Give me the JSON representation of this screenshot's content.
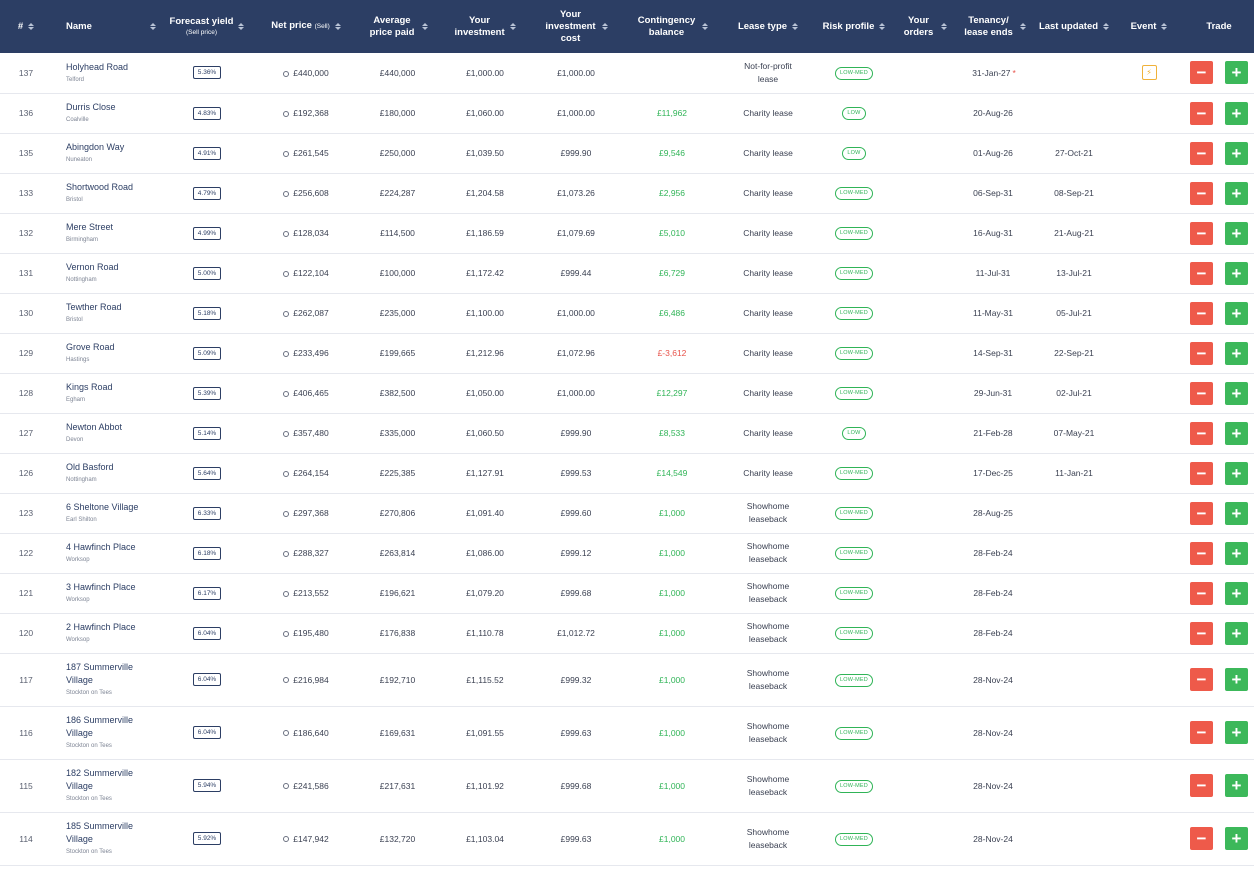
{
  "colors": {
    "header_bg": "#2c3e64",
    "positive": "#30b457",
    "negative": "#e8524a",
    "sell_button": "#ee5a4a",
    "buy_button": "#3cb85a",
    "event": "#f0b23a"
  },
  "icons": {
    "sort": "sort-icon",
    "event": "event-icon",
    "sell": "minus-icon",
    "buy": "plus-icon"
  },
  "header": {
    "num": "#",
    "name": "Name",
    "yield": "Forecast yield",
    "yield_sub": "(Sell price)",
    "net_price": "Net price",
    "net_price_sub": "(Sell)",
    "avg_price": "Average price paid",
    "your_investment": "Your investment",
    "investment_cost": "Your investment cost",
    "contingency": "Contingency balance",
    "lease_type": "Lease type",
    "risk": "Risk profile",
    "orders": "Your orders",
    "tenancy": "Tenancy/ lease ends",
    "updated": "Last updated",
    "event": "Event",
    "trade": "Trade",
    "sell_symbol": "−",
    "buy_symbol": "+"
  },
  "rows": [
    {
      "num": "137",
      "name": "Holyhead Road",
      "location": "Telford",
      "yield": "5.36%",
      "net_price": "£440,000",
      "avg_price": "£440,000",
      "investment": "£1,000.00",
      "cost": "£1,000.00",
      "contingency": "",
      "contingency_status": "none",
      "lease": "Not-for-profit lease",
      "risk": "LOW-MED",
      "tenancy": "31-Jan-27",
      "tenancy_flag": "*",
      "updated": "",
      "event": "⚡"
    },
    {
      "num": "136",
      "name": "Durris Close",
      "location": "Coalville",
      "yield": "4.83%",
      "net_price": "£192,368",
      "avg_price": "£180,000",
      "investment": "£1,060.00",
      "cost": "£1,000.00",
      "contingency": "£11,962",
      "contingency_status": "positive",
      "lease": "Charity lease",
      "risk": "LOW",
      "tenancy": "20-Aug-26",
      "tenancy_flag": "",
      "updated": "",
      "event": ""
    },
    {
      "num": "135",
      "name": "Abingdon Way",
      "location": "Nuneaton",
      "yield": "4.91%",
      "net_price": "£261,545",
      "avg_price": "£250,000",
      "investment": "£1,039.50",
      "cost": "£999.90",
      "contingency": "£9,546",
      "contingency_status": "positive",
      "lease": "Charity lease",
      "risk": "LOW",
      "tenancy": "01-Aug-26",
      "tenancy_flag": "",
      "updated": "27-Oct-21",
      "event": ""
    },
    {
      "num": "133",
      "name": "Shortwood Road",
      "location": "Bristol",
      "yield": "4.79%",
      "net_price": "£256,608",
      "avg_price": "£224,287",
      "investment": "£1,204.58",
      "cost": "£1,073.26",
      "contingency": "£2,956",
      "contingency_status": "positive",
      "lease": "Charity lease",
      "risk": "LOW-MED",
      "tenancy": "06-Sep-31",
      "tenancy_flag": "",
      "updated": "08-Sep-21",
      "event": ""
    },
    {
      "num": "132",
      "name": "Mere Street",
      "location": "Birmingham",
      "yield": "4.99%",
      "net_price": "£128,034",
      "avg_price": "£114,500",
      "investment": "£1,186.59",
      "cost": "£1,079.69",
      "contingency": "£5,010",
      "contingency_status": "positive",
      "lease": "Charity lease",
      "risk": "LOW-MED",
      "tenancy": "16-Aug-31",
      "tenancy_flag": "",
      "updated": "21-Aug-21",
      "event": ""
    },
    {
      "num": "131",
      "name": "Vernon Road",
      "location": "Nottingham",
      "yield": "5.00%",
      "net_price": "£122,104",
      "avg_price": "£100,000",
      "investment": "£1,172.42",
      "cost": "£999.44",
      "contingency": "£6,729",
      "contingency_status": "positive",
      "lease": "Charity lease",
      "risk": "LOW-MED",
      "tenancy": "11-Jul-31",
      "tenancy_flag": "",
      "updated": "13-Jul-21",
      "event": ""
    },
    {
      "num": "130",
      "name": "Tewther Road",
      "location": "Bristol",
      "yield": "5.18%",
      "net_price": "£262,087",
      "avg_price": "£235,000",
      "investment": "£1,100.00",
      "cost": "£1,000.00",
      "contingency": "£6,486",
      "contingency_status": "positive",
      "lease": "Charity lease",
      "risk": "LOW-MED",
      "tenancy": "11-May-31",
      "tenancy_flag": "",
      "updated": "05-Jul-21",
      "event": ""
    },
    {
      "num": "129",
      "name": "Grove Road",
      "location": "Hastings",
      "yield": "5.09%",
      "net_price": "£233,496",
      "avg_price": "£199,665",
      "investment": "£1,212.96",
      "cost": "£1,072.96",
      "contingency": "£-3,612",
      "contingency_status": "negative",
      "lease": "Charity lease",
      "risk": "LOW-MED",
      "tenancy": "14-Sep-31",
      "tenancy_flag": "",
      "updated": "22-Sep-21",
      "event": ""
    },
    {
      "num": "128",
      "name": "Kings Road",
      "location": "Egham",
      "yield": "5.39%",
      "net_price": "£406,465",
      "avg_price": "£382,500",
      "investment": "£1,050.00",
      "cost": "£1,000.00",
      "contingency": "£12,297",
      "contingency_status": "positive",
      "lease": "Charity lease",
      "risk": "LOW-MED",
      "tenancy": "29-Jun-31",
      "tenancy_flag": "",
      "updated": "02-Jul-21",
      "event": ""
    },
    {
      "num": "127",
      "name": "Newton Abbot",
      "location": "Devon",
      "yield": "5.14%",
      "net_price": "£357,480",
      "avg_price": "£335,000",
      "investment": "£1,060.50",
      "cost": "£999.90",
      "contingency": "£8,533",
      "contingency_status": "positive",
      "lease": "Charity lease",
      "risk": "LOW",
      "tenancy": "21-Feb-28",
      "tenancy_flag": "",
      "updated": "07-May-21",
      "event": ""
    },
    {
      "num": "126",
      "name": "Old Basford",
      "location": "Nottingham",
      "yield": "5.64%",
      "net_price": "£264,154",
      "avg_price": "£225,385",
      "investment": "£1,127.91",
      "cost": "£999.53",
      "contingency": "£14,549",
      "contingency_status": "positive",
      "lease": "Charity lease",
      "risk": "LOW-MED",
      "tenancy": "17-Dec-25",
      "tenancy_flag": "",
      "updated": "11-Jan-21",
      "event": ""
    },
    {
      "num": "123",
      "name": "6 Sheltone Village",
      "location": "Earl Shilton",
      "yield": "6.33%",
      "net_price": "£297,368",
      "avg_price": "£270,806",
      "investment": "£1,091.40",
      "cost": "£999.60",
      "contingency": "£1,000",
      "contingency_status": "positive",
      "lease": "Showhome leaseback",
      "risk": "LOW-MED",
      "tenancy": "28-Aug-25",
      "tenancy_flag": "",
      "updated": "",
      "event": ""
    },
    {
      "num": "122",
      "name": "4 Hawfinch Place",
      "location": "Worksop",
      "yield": "6.18%",
      "net_price": "£288,327",
      "avg_price": "£263,814",
      "investment": "£1,086.00",
      "cost": "£999.12",
      "contingency": "£1,000",
      "contingency_status": "positive",
      "lease": "Showhome leaseback",
      "risk": "LOW-MED",
      "tenancy": "28-Feb-24",
      "tenancy_flag": "",
      "updated": "",
      "event": ""
    },
    {
      "num": "121",
      "name": "3 Hawfinch Place",
      "location": "Worksop",
      "yield": "6.17%",
      "net_price": "£213,552",
      "avg_price": "£196,621",
      "investment": "£1,079.20",
      "cost": "£999.68",
      "contingency": "£1,000",
      "contingency_status": "positive",
      "lease": "Showhome leaseback",
      "risk": "LOW-MED",
      "tenancy": "28-Feb-24",
      "tenancy_flag": "",
      "updated": "",
      "event": ""
    },
    {
      "num": "120",
      "name": "2 Hawfinch Place",
      "location": "Worksop",
      "yield": "6.04%",
      "net_price": "£195,480",
      "avg_price": "£176,838",
      "investment": "£1,110.78",
      "cost": "£1,012.72",
      "contingency": "£1,000",
      "contingency_status": "positive",
      "lease": "Showhome leaseback",
      "risk": "LOW-MED",
      "tenancy": "28-Feb-24",
      "tenancy_flag": "",
      "updated": "",
      "event": ""
    },
    {
      "num": "117",
      "name": "187 Summerville Village",
      "location": "Stockton on Tees",
      "yield": "6.04%",
      "net_price": "£216,984",
      "avg_price": "£192,710",
      "investment": "£1,115.52",
      "cost": "£999.32",
      "contingency": "£1,000",
      "contingency_status": "positive",
      "lease": "Showhome leaseback",
      "risk": "LOW-MED",
      "tenancy": "28-Nov-24",
      "tenancy_flag": "",
      "updated": "",
      "event": ""
    },
    {
      "num": "116",
      "name": "186 Summerville Village",
      "location": "Stockton on Tees",
      "yield": "6.04%",
      "net_price": "£186,640",
      "avg_price": "£169,631",
      "investment": "£1,091.55",
      "cost": "£999.63",
      "contingency": "£1,000",
      "contingency_status": "positive",
      "lease": "Showhome leaseback",
      "risk": "LOW-MED",
      "tenancy": "28-Nov-24",
      "tenancy_flag": "",
      "updated": "",
      "event": ""
    },
    {
      "num": "115",
      "name": "182 Summerville Village",
      "location": "Stockton on Tees",
      "yield": "5.94%",
      "net_price": "£241,586",
      "avg_price": "£217,631",
      "investment": "£1,101.92",
      "cost": "£999.68",
      "contingency": "£1,000",
      "contingency_status": "positive",
      "lease": "Showhome leaseback",
      "risk": "LOW-MED",
      "tenancy": "28-Nov-24",
      "tenancy_flag": "",
      "updated": "",
      "event": ""
    },
    {
      "num": "114",
      "name": "185 Summerville Village",
      "location": "Stockton on Tees",
      "yield": "5.92%",
      "net_price": "£147,942",
      "avg_price": "£132,720",
      "investment": "£1,103.04",
      "cost": "£999.63",
      "contingency": "£1,000",
      "contingency_status": "positive",
      "lease": "Showhome leaseback",
      "risk": "LOW-MED",
      "tenancy": "28-Nov-24",
      "tenancy_flag": "",
      "updated": "",
      "event": ""
    }
  ]
}
